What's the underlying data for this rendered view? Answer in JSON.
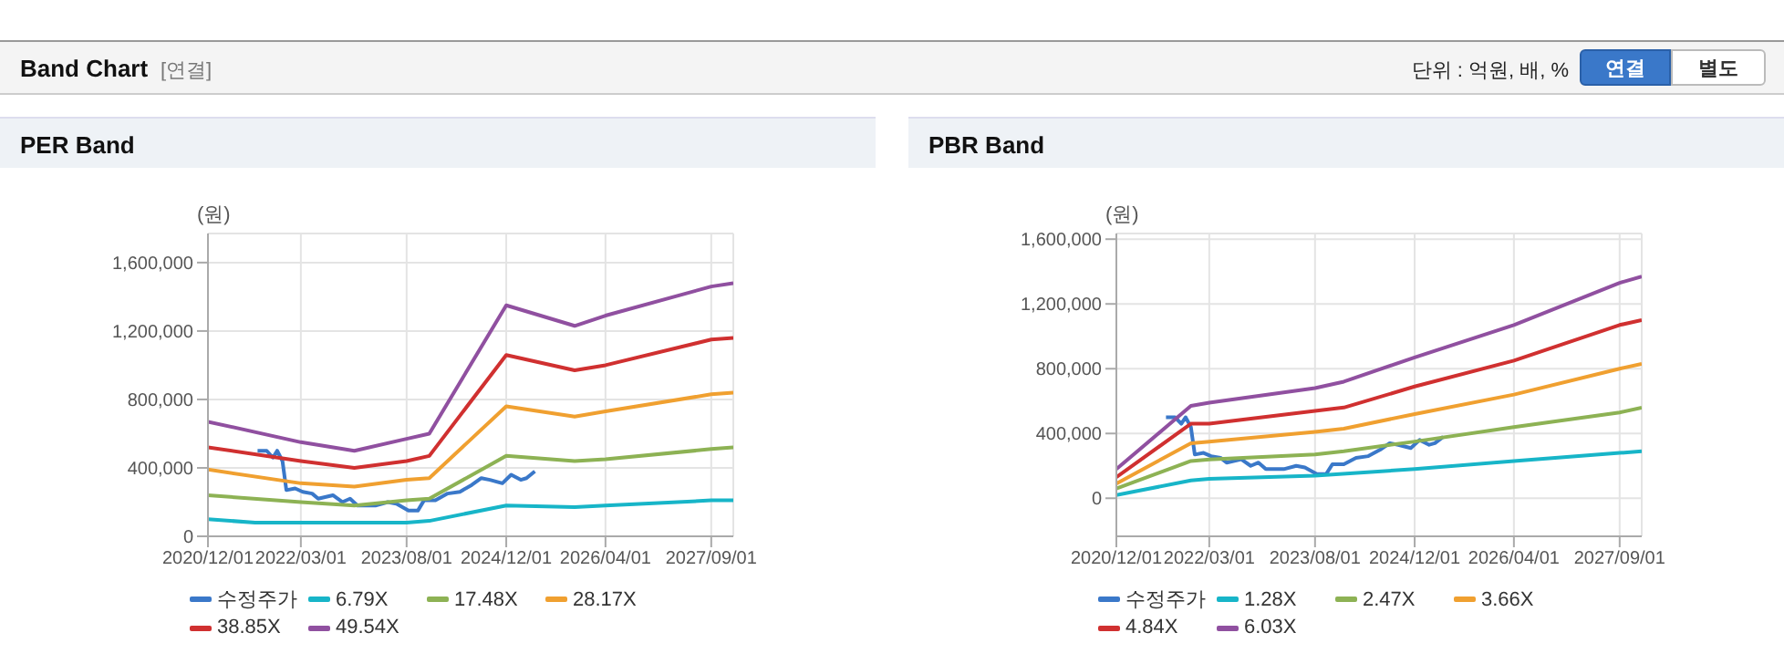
{
  "chart_data": [
    {
      "type": "other",
      "title": "Band Chart",
      "annotations": [
        "[연결]",
        "단위 : 억원, 배, %",
        "연결",
        "별도"
      ]
    },
    {
      "type": "line",
      "title": "PER Band",
      "ylabel": "(원)",
      "grid": true,
      "legend": "bottom",
      "xlim": [
        "2020-12-01",
        "2027-12-18"
      ],
      "xticks": [
        {
          "value": "2020-12-01",
          "label": "2020/12/01"
        },
        {
          "value": "2022-03-01",
          "label": "2022/03/01"
        },
        {
          "value": "2023-08-01",
          "label": "2023/08/01"
        },
        {
          "value": "2024-12-01",
          "label": "2024/12/01"
        },
        {
          "value": "2026-04-01",
          "label": "2026/04/01"
        },
        {
          "value": "2027-09-01",
          "label": "2027/09/01"
        }
      ],
      "ylim": [
        0,
        1770000
      ],
      "yticks": [
        0,
        {
          "value": 400000,
          "label": "400,000"
        },
        {
          "value": 800000,
          "label": "800,000"
        },
        {
          "value": 1200000,
          "label": "1,200,000"
        },
        {
          "value": 1600000,
          "label": "1,600,000"
        }
      ],
      "series": [
        {
          "name": "수정주가",
          "color": "#3a78c9",
          "x": [
            "2021-08-01",
            "2021-09-15",
            "2021-10-15",
            "2021-11-05",
            "2021-12-01",
            "2021-12-20",
            "2022-02-01",
            "2022-03-10",
            "2022-04-25",
            "2022-05-25",
            "2022-08-05",
            "2022-09-20",
            "2022-10-28",
            "2022-12-03",
            "2023-03-01",
            "2023-05-01",
            "2023-06-12",
            "2023-08-10",
            "2023-09-25",
            "2023-10-25",
            "2023-12-20",
            "2024-02-18",
            "2024-04-18",
            "2024-06-15",
            "2024-08-01",
            "2024-09-12",
            "2024-11-12",
            "2024-12-25",
            "2025-02-10",
            "2025-03-10",
            "2025-04-20"
          ],
          "values": [
            500000,
            500000,
            460000,
            500000,
            440000,
            270000,
            280000,
            260000,
            250000,
            220000,
            240000,
            200000,
            220000,
            180000,
            180000,
            200000,
            190000,
            150000,
            150000,
            210000,
            210000,
            250000,
            260000,
            300000,
            340000,
            330000,
            310000,
            360000,
            330000,
            340000,
            380000
          ]
        },
        {
          "name": "6.79X",
          "color": "#17b5c8",
          "x": [
            "2020-12-01",
            "2021-07-20",
            "2023-08-01",
            "2023-11-20",
            "2024-12-01",
            "2025-11-01",
            "2026-04-01",
            "2027-09-01",
            "2027-12-18"
          ],
          "values": [
            100000,
            80000,
            80000,
            90000,
            180000,
            170000,
            180000,
            210000,
            210000
          ]
        },
        {
          "name": "17.48X",
          "color": "#8db254",
          "x": [
            "2020-12-01",
            "2022-03-01",
            "2022-11-18",
            "2023-08-01",
            "2023-11-20",
            "2024-12-01",
            "2025-11-01",
            "2026-04-01",
            "2027-09-01",
            "2027-12-18"
          ],
          "values": [
            240000,
            200000,
            180000,
            210000,
            220000,
            470000,
            440000,
            450000,
            510000,
            520000
          ]
        },
        {
          "name": "28.17X",
          "color": "#f0a030",
          "x": [
            "2020-12-01",
            "2022-03-01",
            "2022-11-18",
            "2023-08-01",
            "2023-11-20",
            "2024-12-01",
            "2025-11-01",
            "2026-04-01",
            "2027-09-01",
            "2027-12-18"
          ],
          "values": [
            390000,
            310000,
            290000,
            330000,
            340000,
            760000,
            700000,
            730000,
            830000,
            840000
          ]
        },
        {
          "name": "38.85X",
          "color": "#d03030",
          "x": [
            "2020-12-01",
            "2022-03-01",
            "2022-11-18",
            "2023-08-01",
            "2023-11-20",
            "2024-12-01",
            "2025-11-01",
            "2026-04-01",
            "2027-09-01",
            "2027-12-18"
          ],
          "values": [
            520000,
            440000,
            400000,
            440000,
            470000,
            1060000,
            970000,
            1000000,
            1150000,
            1160000
          ]
        },
        {
          "name": "49.54X",
          "color": "#9050a0",
          "x": [
            "2020-12-01",
            "2022-03-01",
            "2022-11-18",
            "2023-08-01",
            "2023-11-20",
            "2024-12-01",
            "2025-11-01",
            "2026-04-01",
            "2027-09-01",
            "2027-12-18"
          ],
          "values": [
            670000,
            550000,
            500000,
            570000,
            600000,
            1350000,
            1230000,
            1290000,
            1460000,
            1480000
          ]
        }
      ]
    },
    {
      "type": "line",
      "title": "PBR Band",
      "ylabel": "(원)",
      "grid": true,
      "legend": "bottom",
      "xlim": [
        "2020-12-01",
        "2027-12-18"
      ],
      "xticks": [
        {
          "value": "2020-12-01",
          "label": "2020/12/01"
        },
        {
          "value": "2022-03-01",
          "label": "2022/03/01"
        },
        {
          "value": "2023-08-01",
          "label": "2023/08/01"
        },
        {
          "value": "2024-12-01",
          "label": "2024/12/01"
        },
        {
          "value": "2026-04-01",
          "label": "2026/04/01"
        },
        {
          "value": "2027-09-01",
          "label": "2027/09/01"
        }
      ],
      "ylim": [
        -235000,
        1635000
      ],
      "yticks": [
        0,
        {
          "value": 400000,
          "label": "400,000"
        },
        {
          "value": 800000,
          "label": "800,000"
        },
        {
          "value": 1200000,
          "label": "1,200,000"
        },
        {
          "value": 1600000,
          "label": "1,600,000"
        }
      ],
      "series": [
        {
          "name": "수정주가",
          "color": "#3a78c9",
          "x": [
            "2021-08-01",
            "2021-09-15",
            "2021-10-15",
            "2021-11-05",
            "2021-12-01",
            "2021-12-20",
            "2022-02-01",
            "2022-03-10",
            "2022-04-25",
            "2022-05-25",
            "2022-08-05",
            "2022-09-20",
            "2022-10-28",
            "2022-12-03",
            "2023-03-01",
            "2023-05-01",
            "2023-06-12",
            "2023-08-10",
            "2023-09-25",
            "2023-10-25",
            "2023-12-20",
            "2024-02-18",
            "2024-04-18",
            "2024-06-15",
            "2024-08-01",
            "2024-09-12",
            "2024-11-12",
            "2024-12-25",
            "2025-02-10",
            "2025-03-10",
            "2025-04-20"
          ],
          "values": [
            500000,
            500000,
            460000,
            500000,
            440000,
            270000,
            280000,
            260000,
            250000,
            220000,
            240000,
            200000,
            220000,
            180000,
            180000,
            200000,
            190000,
            150000,
            150000,
            210000,
            210000,
            250000,
            260000,
            300000,
            340000,
            330000,
            310000,
            360000,
            330000,
            340000,
            380000
          ]
        },
        {
          "name": "1.28X",
          "color": "#17b5c8",
          "x": [
            "2020-12-01",
            "2021-12-01",
            "2022-03-01",
            "2023-08-01",
            "2024-12-01",
            "2026-04-01",
            "2027-09-01",
            "2027-12-18"
          ],
          "values": [
            20000,
            110000,
            120000,
            140000,
            180000,
            230000,
            280000,
            290000
          ]
        },
        {
          "name": "2.47X",
          "color": "#8db254",
          "x": [
            "2020-12-01",
            "2021-12-01",
            "2022-03-01",
            "2023-08-01",
            "2023-12-20",
            "2024-12-01",
            "2026-04-01",
            "2027-09-01",
            "2027-12-18"
          ],
          "values": [
            60000,
            230000,
            240000,
            270000,
            290000,
            350000,
            440000,
            530000,
            560000
          ]
        },
        {
          "name": "3.66X",
          "color": "#f0a030",
          "x": [
            "2020-12-01",
            "2021-12-01",
            "2022-03-01",
            "2023-08-01",
            "2023-12-20",
            "2024-12-01",
            "2026-04-01",
            "2027-09-01",
            "2027-12-18"
          ],
          "values": [
            90000,
            340000,
            350000,
            410000,
            430000,
            520000,
            640000,
            800000,
            830000
          ]
        },
        {
          "name": "4.84X",
          "color": "#d03030",
          "x": [
            "2020-12-01",
            "2021-12-01",
            "2022-03-01",
            "2023-08-01",
            "2023-12-20",
            "2024-12-01",
            "2026-04-01",
            "2027-09-01",
            "2027-12-18"
          ],
          "values": [
            130000,
            460000,
            460000,
            540000,
            560000,
            690000,
            850000,
            1070000,
            1100000
          ]
        },
        {
          "name": "6.03X",
          "color": "#9050a0",
          "x": [
            "2020-12-01",
            "2021-12-01",
            "2022-03-01",
            "2023-08-01",
            "2023-12-20",
            "2024-12-01",
            "2026-04-01",
            "2027-09-01",
            "2027-12-18"
          ],
          "values": [
            180000,
            570000,
            590000,
            680000,
            720000,
            870000,
            1070000,
            1330000,
            1370000
          ]
        }
      ]
    }
  ]
}
